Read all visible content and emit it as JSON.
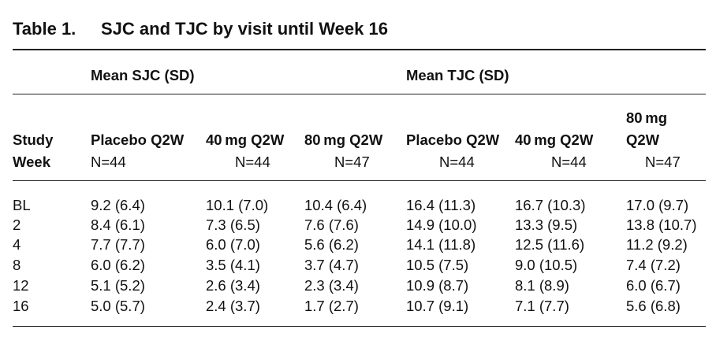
{
  "table": {
    "number": "Table 1.",
    "title": "SJC and TJC by visit until Week 16",
    "group_headers": [
      "Mean SJC (SD)",
      "Mean TJC (SD)"
    ],
    "stub_header": [
      "Study",
      "Week"
    ],
    "columns": [
      {
        "label": "Placebo Q2W",
        "n": "N=44"
      },
      {
        "label": "40 mg Q2W",
        "n": "N=44"
      },
      {
        "label": "80 mg Q2W",
        "n": "N=47"
      },
      {
        "label": "Placebo Q2W",
        "n": "N=44"
      },
      {
        "label": "40 mg Q2W",
        "n": "N=44"
      },
      {
        "label_line1": "80 mg",
        "label_line2": "Q2W",
        "n": "N=47"
      }
    ],
    "rows": [
      {
        "week": "BL",
        "cells": [
          "9.2 (6.4)",
          "10.1 (7.0)",
          "10.4 (6.4)",
          "16.4 (11.3)",
          "16.7 (10.3)",
          "17.0 (9.7)"
        ]
      },
      {
        "week": "2",
        "cells": [
          "8.4 (6.1)",
          "7.3 (6.5)",
          "7.6 (7.6)",
          "14.9 (10.0)",
          "13.3 (9.5)",
          "13.8 (10.7)"
        ]
      },
      {
        "week": "4",
        "cells": [
          "7.7 (7.7)",
          "6.0 (7.0)",
          "5.6 (6.2)",
          "14.1 (11.8)",
          "12.5 (11.6)",
          "11.2 (9.2)"
        ]
      },
      {
        "week": "8",
        "cells": [
          "6.0 (6.2)",
          "3.5 (4.1)",
          "3.7 (4.7)",
          "10.5 (7.5)",
          "9.0 (10.5)",
          "7.4 (7.2)"
        ]
      },
      {
        "week": "12",
        "cells": [
          "5.1 (5.2)",
          "2.6 (3.4)",
          "2.3 (3.4)",
          "10.9 (8.7)",
          "8.1 (8.9)",
          "6.0 (6.7)"
        ]
      },
      {
        "week": "16",
        "cells": [
          "5.0 (5.7)",
          "2.4 (3.7)",
          "1.7 (2.7)",
          "10.7 (9.1)",
          "7.1 (7.7)",
          "5.6 (6.8)"
        ]
      }
    ]
  }
}
